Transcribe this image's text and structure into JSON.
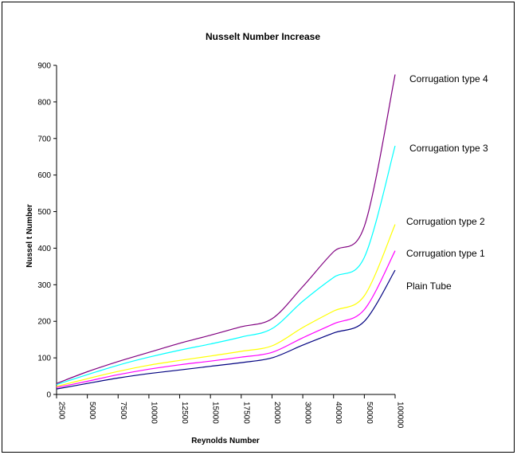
{
  "chart_data": {
    "type": "line",
    "title": "Nusselt Number Increase",
    "xlabel": "Reynolds Number",
    "ylabel": "Nussel t Number",
    "categories": [
      "2500",
      "5000",
      "7500",
      "10000",
      "12500",
      "15000",
      "17500",
      "20000",
      "30000",
      "40000",
      "50000",
      "100000"
    ],
    "ylim": [
      0,
      900
    ],
    "yticks": [
      0,
      100,
      200,
      300,
      400,
      500,
      600,
      700,
      800,
      900
    ],
    "grid": false,
    "legend": "right, labels at line ends",
    "series": [
      {
        "name": "Plain Tube",
        "color": "#000080",
        "values": [
          15,
          30,
          45,
          57,
          67,
          77,
          87,
          100,
          135,
          168,
          200,
          340
        ]
      },
      {
        "name": "Corrugation type 1",
        "color": "#ff00ff",
        "values": [
          19,
          36,
          54,
          69,
          81,
          91,
          102,
          115,
          155,
          193,
          232,
          393
        ]
      },
      {
        "name": "Corrugation type 2",
        "color": "#ffff00",
        "values": [
          22,
          43,
          63,
          80,
          93,
          105,
          118,
          133,
          183,
          228,
          270,
          465
        ]
      },
      {
        "name": "Corrugation type 3",
        "color": "#00ffff",
        "values": [
          27,
          54,
          80,
          102,
          121,
          138,
          157,
          180,
          255,
          320,
          375,
          680
        ]
      },
      {
        "name": "Corrugation type 4",
        "color": "#800080",
        "values": [
          30,
          62,
          90,
          115,
          140,
          162,
          185,
          207,
          295,
          390,
          460,
          875
        ]
      }
    ]
  }
}
